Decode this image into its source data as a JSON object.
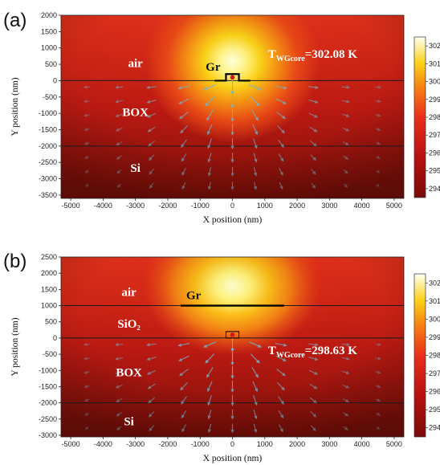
{
  "chart_data": [
    {
      "panel_label": "(a)",
      "type": "heatmap",
      "xlabel": "X position (nm)",
      "ylabel": "Y position (nm)",
      "xlim": [
        -5300,
        5300
      ],
      "ylim": [
        -3600,
        2000
      ],
      "x_ticks": [
        -5000,
        -4000,
        -3000,
        -2000,
        -1000,
        0,
        1000,
        2000,
        3000,
        4000,
        5000
      ],
      "y_ticks": [
        -3500,
        -3000,
        -2500,
        -2000,
        -1500,
        -1000,
        -500,
        0,
        500,
        1000,
        1500,
        2000
      ],
      "colorbar": {
        "ticks": [
          294,
          295,
          296,
          297,
          298,
          299,
          300,
          301,
          302
        ],
        "range": [
          293.5,
          302.5
        ]
      },
      "interfaces_y": [
        0,
        -2000
      ],
      "heat_source": {
        "x": 0,
        "y": 100
      },
      "hot_spot_temperature": 302.08,
      "hot_spot_center": {
        "x": 0,
        "y": 600
      },
      "regions": [
        {
          "label": "air",
          "x": -3000,
          "y": 500
        },
        {
          "label": "BOX",
          "x": -3000,
          "y": -1000
        },
        {
          "label": "Si",
          "x": -3000,
          "y": -2700
        }
      ],
      "graphene": {
        "label": "Gr",
        "label_x": -600,
        "label_y": 300,
        "kind": "rib",
        "x_range": [
          -550,
          550
        ],
        "rib_x": [
          -200,
          200
        ],
        "y_base": 0,
        "y_top": 200
      },
      "temperature_label": {
        "T": "T",
        "sub": "WGcore",
        "value": "=302.08 K",
        "x": 1100,
        "y": 700
      }
    },
    {
      "panel_label": "(b)",
      "type": "heatmap",
      "xlabel": "X position (nm)",
      "ylabel": "Y position (nm)",
      "xlim": [
        -5300,
        5300
      ],
      "ylim": [
        -3050,
        2500
      ],
      "x_ticks": [
        -5000,
        -4000,
        -3000,
        -2000,
        -1000,
        0,
        1000,
        2000,
        3000,
        4000,
        5000
      ],
      "y_ticks": [
        -3000,
        -2500,
        -2000,
        -1500,
        -1000,
        -500,
        0,
        500,
        1000,
        1500,
        2000,
        2500
      ],
      "colorbar": {
        "ticks": [
          294,
          295,
          296,
          297,
          298,
          299,
          300,
          301,
          302
        ],
        "range": [
          293.5,
          302.5
        ]
      },
      "interfaces_y": [
        1000,
        0,
        -2000
      ],
      "heat_source": {
        "x": 0,
        "y": 100
      },
      "hot_spot_temperature": 302.3,
      "hot_spot_center": {
        "x": 0,
        "y": 1600
      },
      "regions": [
        {
          "label": "air",
          "x": -3200,
          "y": 1380
        },
        {
          "label": "SiO₂",
          "x": -3200,
          "y": 400
        },
        {
          "label": "BOX",
          "x": -3200,
          "y": -1100
        },
        {
          "label": "Si",
          "x": -3200,
          "y": -2600
        }
      ],
      "graphene": {
        "label": "Gr",
        "label_x": -1200,
        "label_y": 1200,
        "kind": "flat",
        "x_range": [
          -1600,
          1600
        ],
        "y_base": 1000,
        "box_x": [
          -200,
          200
        ],
        "box_y": [
          0,
          200
        ]
      },
      "temperature_label": {
        "T": "T",
        "sub": "WGcore",
        "value": "=298.63 K",
        "x": 1100,
        "y": -500
      }
    }
  ]
}
